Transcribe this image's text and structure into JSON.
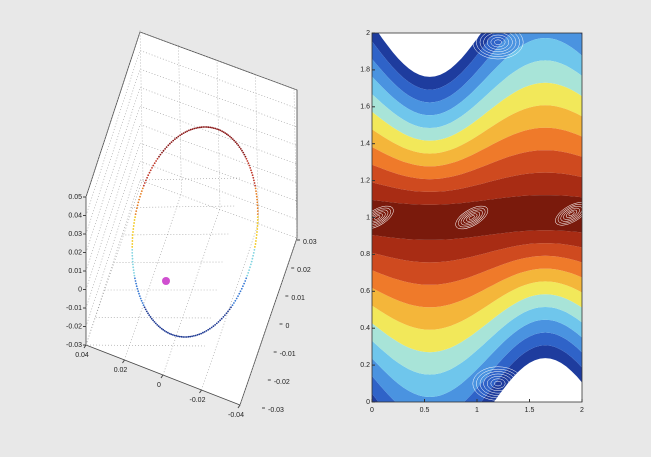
{
  "chart_data": [
    {
      "type": "scatter3d",
      "zlim": [
        -0.03,
        0.05
      ],
      "zticks": [
        0.05,
        0.04,
        0.03,
        0.02,
        0.01,
        0,
        -0.01,
        -0.02,
        -0.03
      ],
      "xlim": [
        -0.03,
        0.03
      ],
      "xticks": [
        0.03,
        0.02,
        0.01,
        0,
        -0.01,
        -0.02,
        -0.03
      ],
      "ylim": [
        -0.04,
        0.04
      ],
      "yticks": [
        0.04,
        0.02,
        0,
        -0.02,
        -0.04
      ],
      "grid": true
    },
    {
      "type": "phase",
      "xlim": [
        0,
        2
      ],
      "xticks": [
        0,
        0.5,
        1,
        1.5,
        2
      ],
      "ylim": [
        0,
        2
      ],
      "yticks": [
        0,
        0.2,
        0.4,
        0.6,
        0.8,
        1,
        1.2,
        1.4,
        1.6,
        1.8,
        2
      ],
      "grid": false
    }
  ]
}
